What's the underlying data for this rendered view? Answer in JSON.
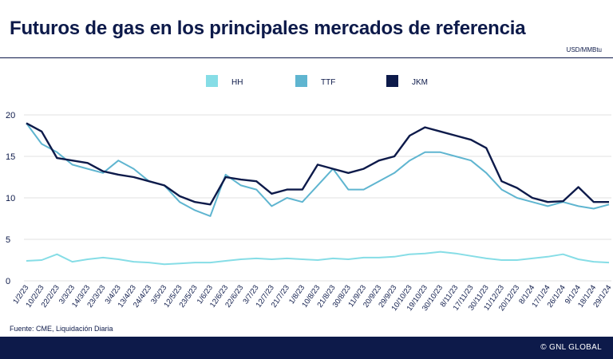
{
  "page": {
    "title": "Futuros de gas en los principales mercados de referencia",
    "unit": "USD/MMBtu",
    "source": "Fuente: CME, Liquidación Diaria",
    "brand": "© GNL GLOBAL"
  },
  "chart_data": {
    "type": "line",
    "ylim": [
      0,
      20
    ],
    "yticks": [
      0,
      5,
      10,
      15,
      20
    ],
    "grid": "horizontal",
    "legend_position": "top",
    "x_tick_labels": [
      "1/2/23",
      "10/2/23",
      "22/2/23",
      "3/3/23",
      "14/3/23",
      "23/3/23",
      "3/4/23",
      "13/4/23",
      "24/4/23",
      "3/5/23",
      "12/5/23",
      "23/5/23",
      "1/6/23",
      "12/6/23",
      "22/6/23",
      "3/7/23",
      "12/7/23",
      "21/7/23",
      "1/8/23",
      "10/8/23",
      "21/8/23",
      "30/8/23",
      "11/9/23",
      "20/9/23",
      "29/9/23",
      "10/10/23",
      "19/10/23",
      "30/10/23",
      "8/11/23",
      "17/11/23",
      "30/11/23",
      "11/12/23",
      "20/12/23",
      "8/1/24",
      "17/1/24",
      "26/1/24",
      "9/1/24",
      "18/1/24",
      "29/1/24"
    ],
    "series": [
      {
        "name": "HH",
        "color": "#86dde6",
        "values": [
          2.4,
          2.5,
          3.2,
          2.3,
          2.6,
          2.8,
          2.6,
          2.3,
          2.2,
          2.0,
          2.1,
          2.2,
          2.2,
          2.4,
          2.6,
          2.7,
          2.6,
          2.7,
          2.6,
          2.5,
          2.7,
          2.6,
          2.8,
          2.8,
          2.9,
          3.2,
          3.3,
          3.5,
          3.3,
          3.0,
          2.7,
          2.5,
          2.5,
          2.7,
          2.9,
          3.2,
          2.6,
          2.3,
          2.2
        ]
      },
      {
        "name": "TTF",
        "color": "#5fb5d0",
        "values": [
          19.0,
          16.5,
          15.5,
          14.0,
          13.5,
          13.0,
          14.5,
          13.5,
          12.0,
          11.5,
          9.5,
          8.5,
          7.8,
          12.8,
          11.5,
          11.0,
          9.0,
          10.0,
          9.5,
          11.5,
          13.5,
          11.0,
          11.0,
          12.0,
          13.0,
          14.5,
          15.5,
          15.5,
          15.0,
          14.5,
          13.0,
          11.0,
          10.0,
          9.5,
          9.0,
          9.5,
          9.0,
          8.7,
          9.2
        ]
      },
      {
        "name": "JKM",
        "color": "#0d1a4a",
        "values": [
          19.0,
          18.0,
          14.8,
          14.5,
          14.2,
          13.2,
          12.8,
          12.5,
          12.0,
          11.5,
          10.2,
          9.5,
          9.2,
          12.5,
          12.2,
          12.0,
          10.5,
          11.0,
          11.0,
          14.0,
          13.5,
          13.0,
          13.5,
          14.5,
          15.0,
          17.5,
          18.5,
          18.0,
          17.5,
          17.0,
          16.0,
          12.0,
          11.2,
          10.0,
          9.5,
          9.6,
          11.3,
          9.5,
          9.5
        ]
      }
    ]
  }
}
